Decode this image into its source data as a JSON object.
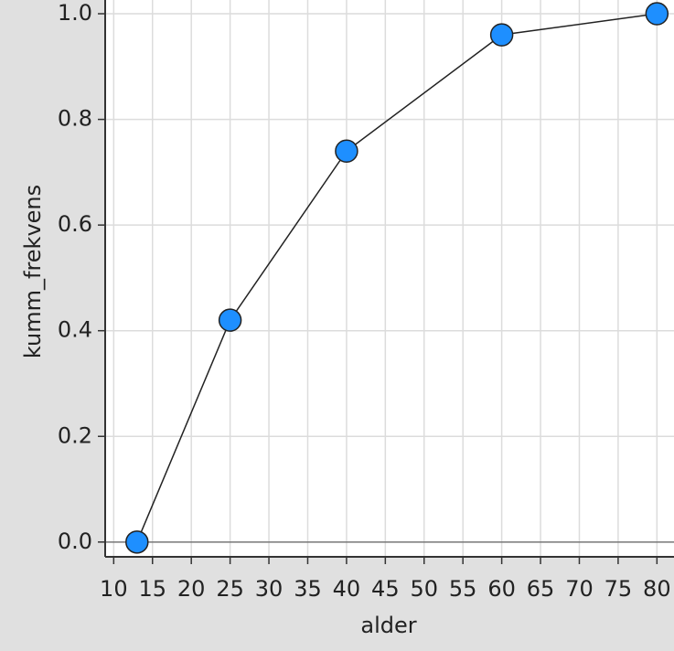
{
  "chart_data": {
    "type": "line",
    "x_label": "alder",
    "y_label": "kumm_frekvens",
    "series": [
      {
        "color": "#1e8fff",
        "x": [
          13,
          25,
          40,
          60,
          80
        ],
        "values": [
          0,
          0.42,
          0.74,
          0.96,
          1.0
        ]
      }
    ],
    "xlim": [
      8.9,
      82.2
    ],
    "ylim": [
      -0.028,
      1.026
    ],
    "xticks": [
      10,
      15,
      20,
      25,
      30,
      35,
      40,
      45,
      50,
      55,
      60,
      65,
      70,
      75,
      80
    ],
    "yticks": [
      {
        "value": 0,
        "label": "0.0"
      },
      0.2,
      0.4,
      0.6,
      0.8,
      {
        "value": 1,
        "label": "1.0"
      }
    ],
    "grid": true
  }
}
